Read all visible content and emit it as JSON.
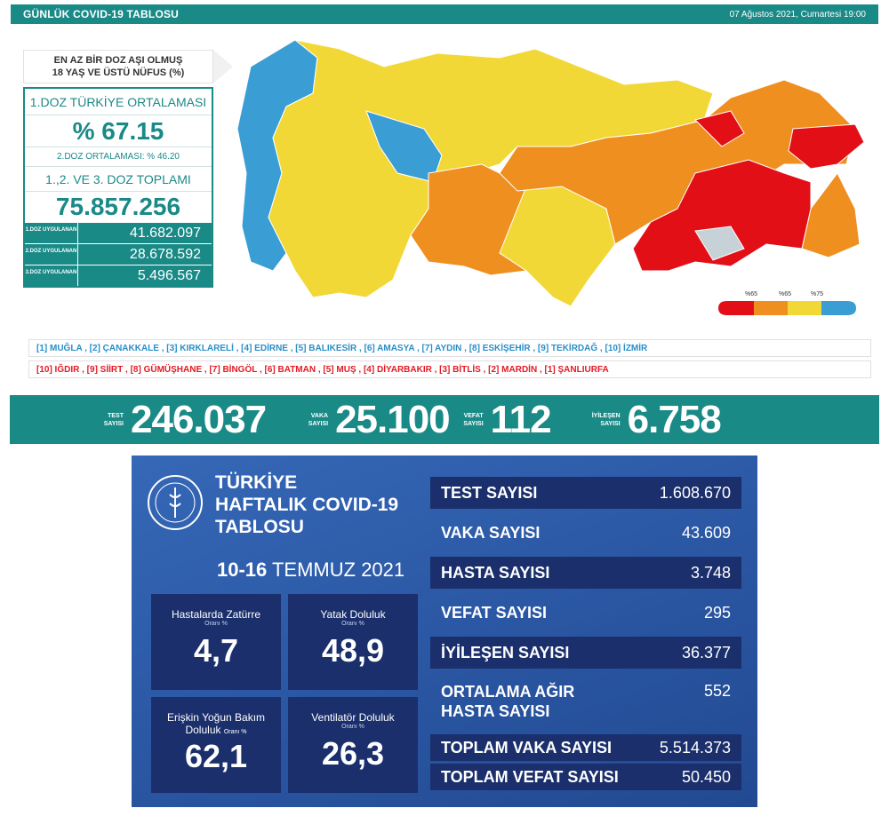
{
  "header": {
    "title": "GÜNLÜK COVID-19 TABLOSU",
    "date": "07 Ağustos 2021, Cumartesi 19:00"
  },
  "vaccine": {
    "headline_l1": "EN AZ BİR DOZ AŞI OLMUŞ",
    "headline_l2": "18 YAŞ VE ÜSTÜ NÜFUS (%)",
    "dose1_avg_label": "1.DOZ TÜRKİYE ORTALAMASI",
    "dose1_avg_value": "% 67.15",
    "dose2_avg": "2.DOZ ORTALAMASI: % 46.20",
    "total_label": "1.,2. VE 3. DOZ TOPLAMI",
    "total_value": "75.857.256",
    "doses": [
      {
        "label": "1.DOZ UYGULANAN",
        "value": "41.682.097"
      },
      {
        "label": "2.DOZ UYGULANAN",
        "value": "28.678.592"
      },
      {
        "label": "3.DOZ UYGULANAN",
        "value": "5.496.567"
      }
    ]
  },
  "legend": {
    "l65": "%65",
    "l65b": "%65",
    "l75": "%75",
    "colors": [
      "#e30f17",
      "#ef8f1f",
      "#f2d836",
      "#3a9ed4"
    ]
  },
  "top_list": "[1] MUĞLA , [2] ÇANAKKALE , [3] KIRKLARELİ , [4] EDİRNE , [5] BALIKESİR , [6] AMASYA , [7] AYDIN , [8] ESKİŞEHİR , [9] TEKİRDAĞ , [10] İZMİR",
  "bottom_list": "[10] IĞDIR , [9] SİİRT , [8] GÜMÜŞHANE , [7] BİNGÖL , [6] BATMAN , [5] MUŞ , [4] DİYARBAKIR , [3] BİTLİS , [2] MARDİN , [1] ŞANLIURFA",
  "daily": {
    "test_label": "TEST SAYISI",
    "test": "246.037",
    "case_label": "VAKA SAYISI",
    "case": "25.100",
    "death_label": "VEFAT SAYISI",
    "death": "112",
    "recovered_label": "İYİLEŞEN SAYISI",
    "recovered": "6.758"
  },
  "weekly": {
    "title_l1": "TÜRKİYE",
    "title_l2": "HAFTALIK COVID-19",
    "title_l3": "TABLOSU",
    "date_bold": "10-16",
    "date_rest": " TEMMUZ 2021",
    "cards": [
      {
        "label": "Hastalarda Zatürre",
        "sub": "Oranı %",
        "value": "4,7"
      },
      {
        "label": "Yatak Doluluk",
        "sub": "Oranı %",
        "value": "48,9"
      },
      {
        "label": "Erişkin Yoğun Bakım",
        "label2": "Doluluk",
        "sub": "Oranı %",
        "value": "62,1"
      },
      {
        "label": "Ventilatör Doluluk",
        "sub": "Oranı %",
        "value": "26,3"
      }
    ],
    "rows": [
      {
        "label": "TEST SAYISI",
        "value": "1.608.670"
      },
      {
        "label": "VAKA SAYISI",
        "value": "43.609"
      },
      {
        "label": "HASTA SAYISI",
        "value": "3.748"
      },
      {
        "label": "VEFAT SAYISI",
        "value": "295"
      },
      {
        "label": "İYİLEŞEN SAYISI",
        "value": "36.377"
      },
      {
        "label": "ORTALAMA AĞIR",
        "label2": "HASTA SAYISI",
        "value": "552"
      },
      {
        "label": "TOPLAM VAKA SAYISI",
        "value": "5.514.373"
      },
      {
        "label": "TOPLAM VEFAT SAYISI",
        "value": "50.450"
      }
    ]
  }
}
